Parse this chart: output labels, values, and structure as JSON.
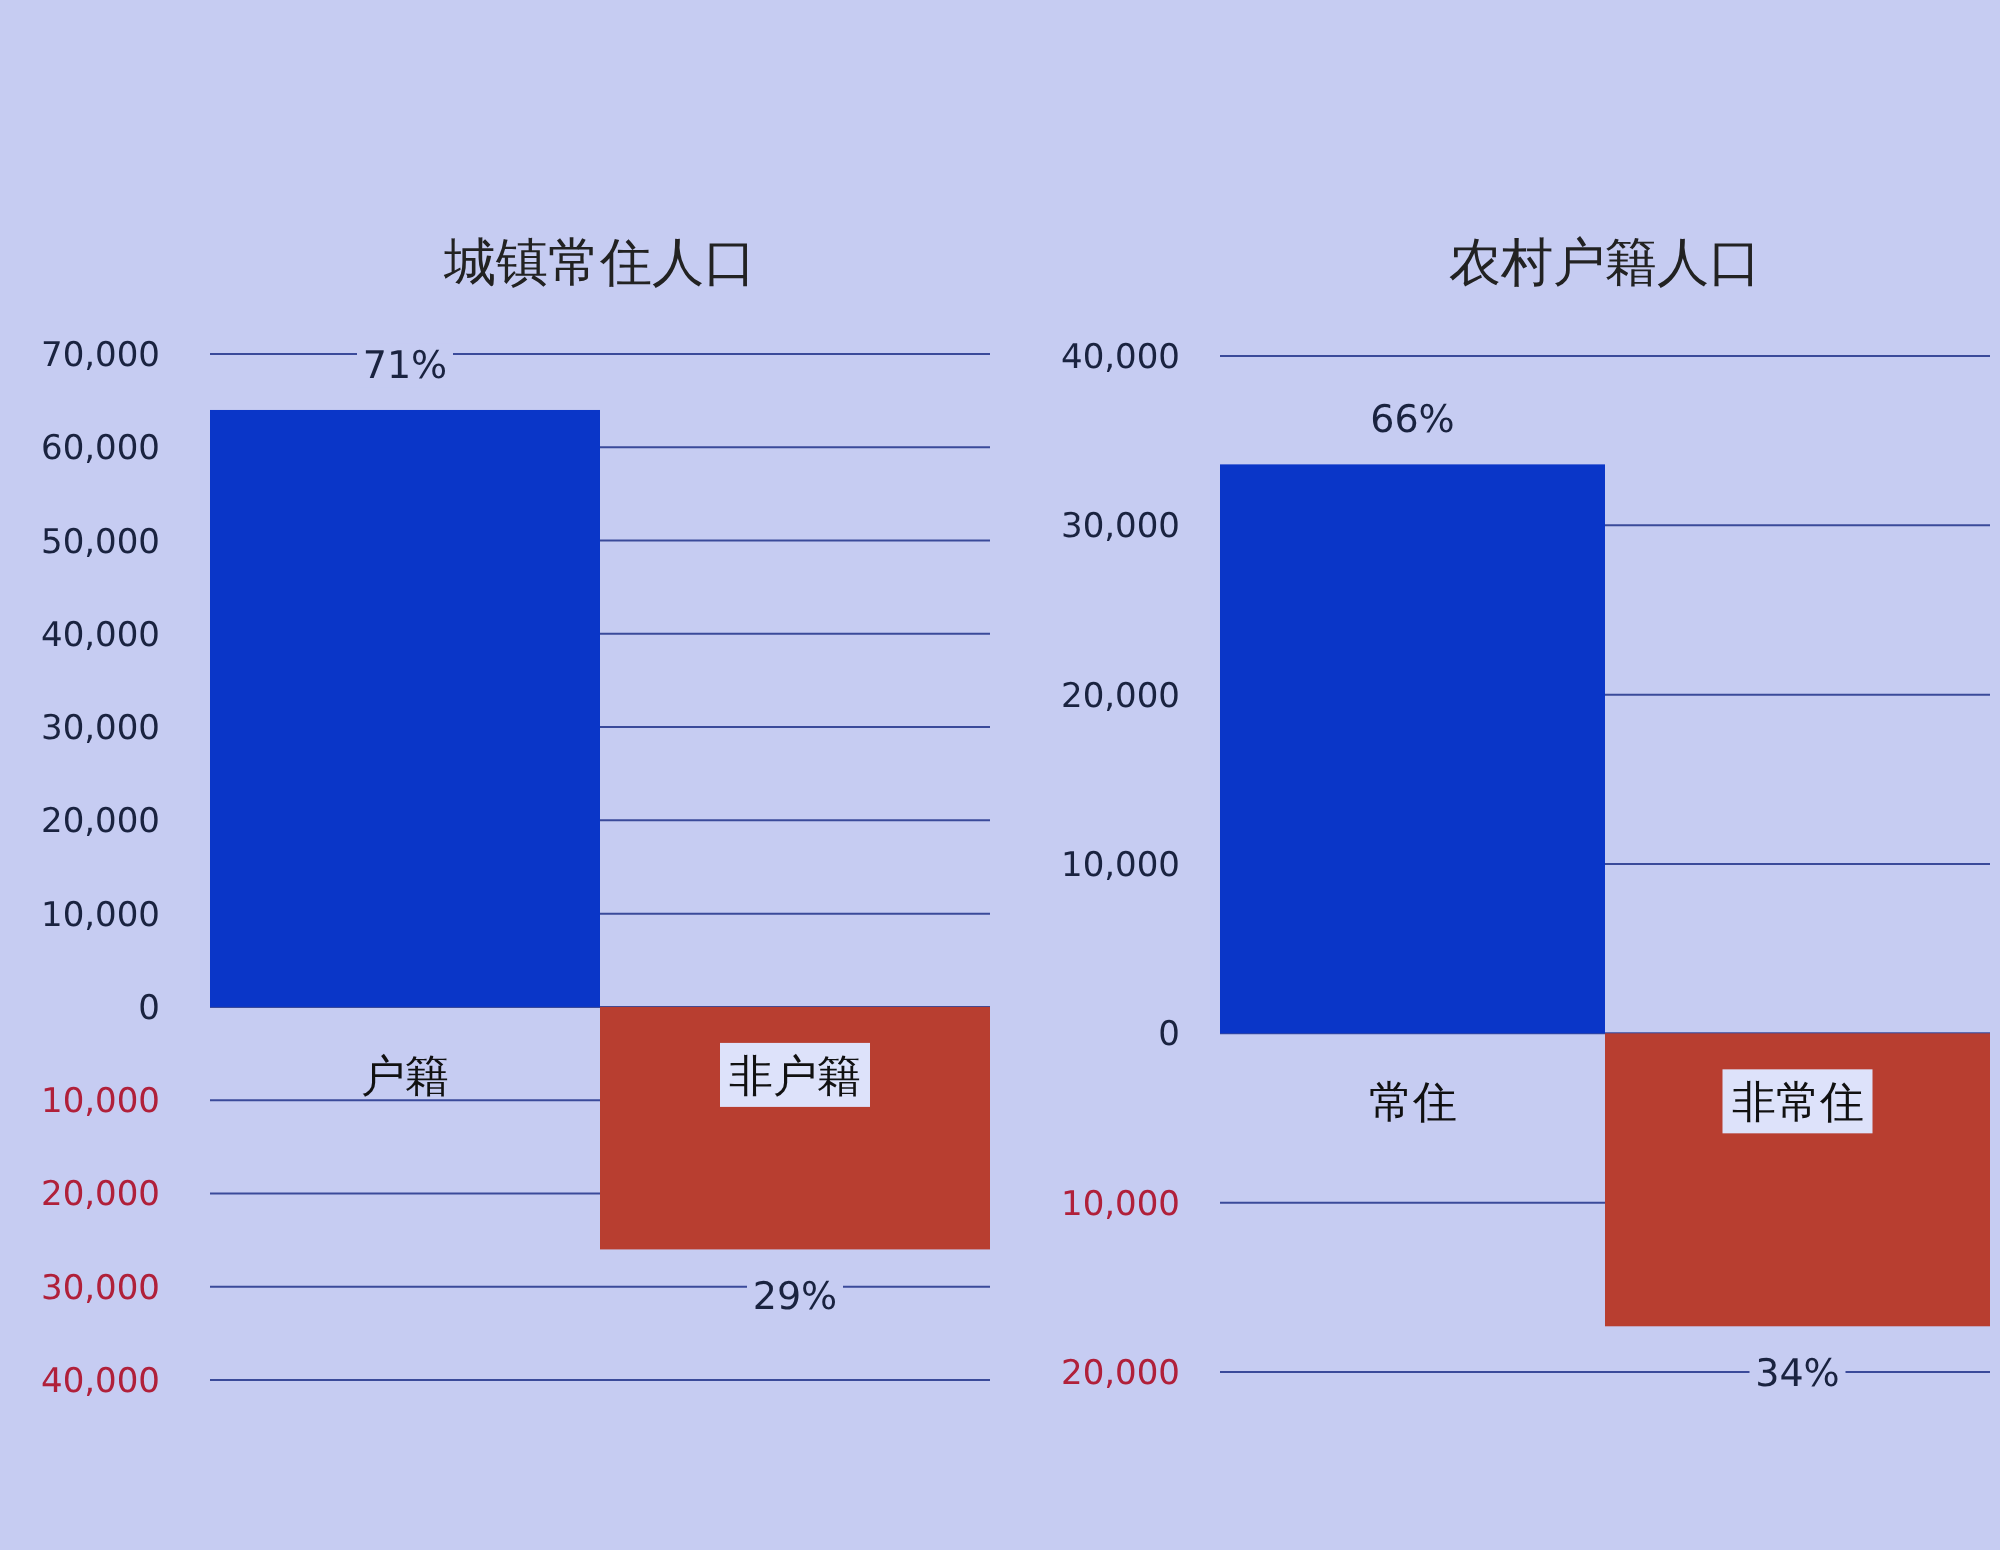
{
  "chart_data": [
    {
      "type": "bar",
      "title": "城镇常住人口",
      "categories": [
        "户籍",
        "非户籍"
      ],
      "values": [
        64000,
        -26000
      ],
      "colors": [
        "#0a36c8",
        "#b83e30"
      ],
      "annotations": [
        {
          "text": "71%",
          "x": "户籍",
          "y": 64000
        },
        {
          "text": "29%",
          "x": "非户籍",
          "y": -26000
        }
      ],
      "ylim": [
        -40000,
        70000
      ],
      "yticks": [
        {
          "value": -40000,
          "label": "40,000"
        },
        {
          "value": -30000,
          "label": "30,000"
        },
        {
          "value": -20000,
          "label": "20,000"
        },
        {
          "value": -10000,
          "label": "10,000"
        },
        {
          "value": 0,
          "label": "0"
        },
        {
          "value": 10000,
          "label": "10,000"
        },
        {
          "value": 20000,
          "label": "20,000"
        },
        {
          "value": 30000,
          "label": "30,000"
        },
        {
          "value": 40000,
          "label": "40,000"
        },
        {
          "value": 50000,
          "label": "50,000"
        },
        {
          "value": 60000,
          "label": "60,000"
        },
        {
          "value": 70000,
          "label": "70,000"
        }
      ],
      "grid": "y"
    },
    {
      "type": "bar",
      "title": "农村户籍人口",
      "categories": [
        "常住",
        "非常住"
      ],
      "values": [
        33600,
        -17300
      ],
      "colors": [
        "#0a36c8",
        "#b83e30"
      ],
      "annotations": [
        {
          "text": "66%",
          "x": "常住",
          "y": 33600
        },
        {
          "text": "34%",
          "x": "非常住",
          "y": -17300
        }
      ],
      "ylim": [
        -20000,
        40000
      ],
      "yticks": [
        {
          "value": -20000,
          "label": "20,000"
        },
        {
          "value": -10000,
          "label": "10,000"
        },
        {
          "value": 0,
          "label": "0"
        },
        {
          "value": 10000,
          "label": "10,000"
        },
        {
          "value": 20000,
          "label": "20,000"
        },
        {
          "value": 30000,
          "label": "30,000"
        },
        {
          "value": 40000,
          "label": "40,000"
        }
      ],
      "grid": "y"
    }
  ]
}
